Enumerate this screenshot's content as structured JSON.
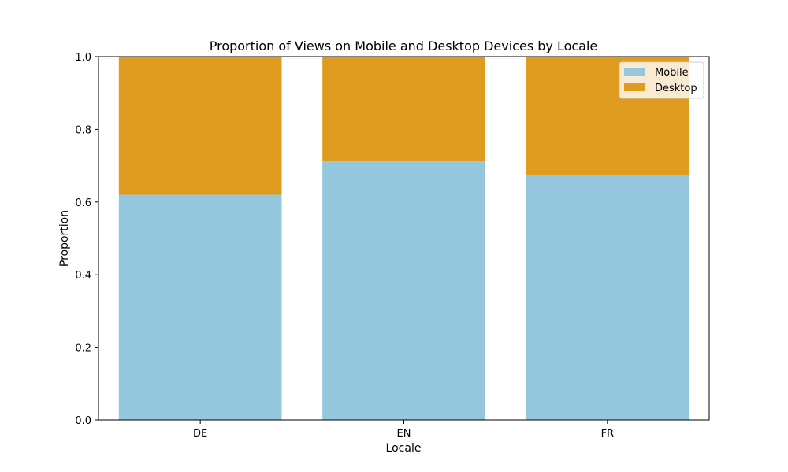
{
  "chart_data": {
    "type": "bar",
    "stacked": true,
    "title": "Proportion of Views on Mobile and Desktop Devices by Locale",
    "xlabel": "Locale",
    "ylabel": "Proportion",
    "categories": [
      "DE",
      "EN",
      "FR"
    ],
    "series": [
      {
        "name": "Mobile",
        "values": [
          0.62,
          0.712,
          0.674
        ],
        "color": "#95c8de"
      },
      {
        "name": "Desktop",
        "values": [
          0.38,
          0.288,
          0.326
        ],
        "color": "#e09c21"
      }
    ],
    "ylim": [
      0,
      1.0
    ],
    "yticks": [
      "0.0",
      "0.2",
      "0.4",
      "0.6",
      "0.8",
      "1.0"
    ],
    "grid": false,
    "legend_position": "top-right"
  }
}
